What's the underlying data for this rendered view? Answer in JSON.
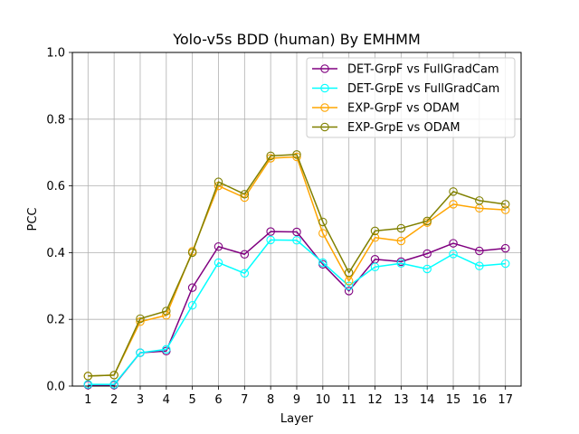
{
  "chart_data": {
    "type": "line",
    "title": "Yolo-v5s BDD (human) By EMHMM",
    "xlabel": "Layer",
    "ylabel": "PCC",
    "x": [
      1,
      2,
      3,
      4,
      5,
      6,
      7,
      8,
      9,
      10,
      11,
      12,
      13,
      14,
      15,
      16,
      17
    ],
    "xticks": [
      "1",
      "2",
      "3",
      "4",
      "5",
      "6",
      "7",
      "8",
      "9",
      "10",
      "11",
      "12",
      "13",
      "14",
      "15",
      "16",
      "17"
    ],
    "ylim": [
      0.0,
      1.0
    ],
    "yticks": [
      "0.0",
      "0.2",
      "0.4",
      "0.6",
      "0.8",
      "1.0"
    ],
    "grid": true,
    "legend_position": "top-right",
    "series": [
      {
        "name": "DET-GrpF vs FullGradCam",
        "color": "#800080",
        "values": [
          0.003,
          0.003,
          0.1,
          0.105,
          0.295,
          0.418,
          0.395,
          0.463,
          0.462,
          0.365,
          0.285,
          0.38,
          0.373,
          0.397,
          0.428,
          0.405,
          0.413
        ]
      },
      {
        "name": "DET-GrpE vs FullGradCam",
        "color": "#00ffff",
        "values": [
          0.005,
          0.005,
          0.1,
          0.11,
          0.242,
          0.37,
          0.338,
          0.438,
          0.437,
          0.37,
          0.3,
          0.357,
          0.368,
          0.351,
          0.396,
          0.36,
          0.367
        ]
      },
      {
        "name": "EXP-GrpF vs ODAM",
        "color": "#ffa500",
        "values": [
          0.03,
          0.033,
          0.193,
          0.212,
          0.404,
          0.6,
          0.565,
          0.683,
          0.687,
          0.458,
          0.315,
          0.445,
          0.435,
          0.49,
          0.545,
          0.533,
          0.528
        ]
      },
      {
        "name": "EXP-GrpE vs ODAM",
        "color": "#808000",
        "values": [
          0.03,
          0.033,
          0.202,
          0.225,
          0.4,
          0.612,
          0.575,
          0.69,
          0.694,
          0.492,
          0.34,
          0.465,
          0.473,
          0.495,
          0.583,
          0.556,
          0.545
        ]
      }
    ]
  }
}
